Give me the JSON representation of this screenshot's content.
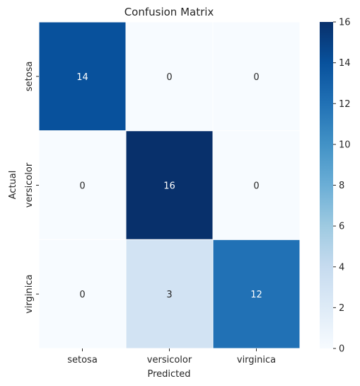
{
  "chart_data": {
    "type": "heatmap",
    "title": "Confusion Matrix",
    "xlabel": "Predicted",
    "ylabel": "Actual",
    "x_categories": [
      "setosa",
      "versicolor",
      "virginica"
    ],
    "y_categories": [
      "setosa",
      "versicolor",
      "virginica"
    ],
    "values": [
      [
        14,
        0,
        0
      ],
      [
        0,
        16,
        0
      ],
      [
        0,
        3,
        12
      ]
    ],
    "colormap": "Blues",
    "color_range": [
      0,
      16
    ],
    "colorbar_ticks": [
      0,
      2,
      4,
      6,
      8,
      10,
      12,
      14,
      16
    ],
    "annotate": true
  }
}
